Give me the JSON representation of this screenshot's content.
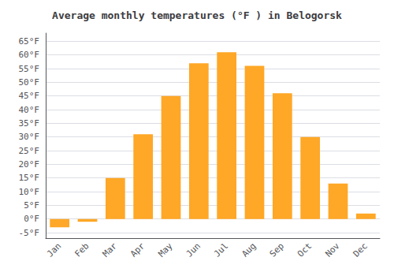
{
  "chart_data": {
    "type": "bar",
    "title": "Average monthly temperatures (°F ) in Belogorsk",
    "categories": [
      "Jan",
      "Feb",
      "Mar",
      "Apr",
      "May",
      "Jun",
      "Jul",
      "Aug",
      "Sep",
      "Oct",
      "Nov",
      "Dec"
    ],
    "values": [
      -3,
      -1,
      15,
      31,
      45,
      57,
      61,
      56,
      46,
      30,
      13,
      2
    ],
    "color": "#FFA726",
    "ylim": [
      -7,
      68
    ],
    "yticks": [
      {
        "value": -5,
        "label": "-5°F"
      },
      {
        "value": 0,
        "label": "0°F"
      },
      {
        "value": 5,
        "label": "5°F"
      },
      {
        "value": 10,
        "label": "10°F"
      },
      {
        "value": 15,
        "label": "15°F"
      },
      {
        "value": 20,
        "label": "20°F"
      },
      {
        "value": 25,
        "label": "25°F"
      },
      {
        "value": 30,
        "label": "30°F"
      },
      {
        "value": 35,
        "label": "35°F"
      },
      {
        "value": 40,
        "label": "40°F"
      },
      {
        "value": 45,
        "label": "45°F"
      },
      {
        "value": 50,
        "label": "50°F"
      },
      {
        "value": 55,
        "label": "55°F"
      },
      {
        "value": 60,
        "label": "60°F"
      },
      {
        "value": 65,
        "label": "65°F"
      }
    ],
    "grid": true
  }
}
